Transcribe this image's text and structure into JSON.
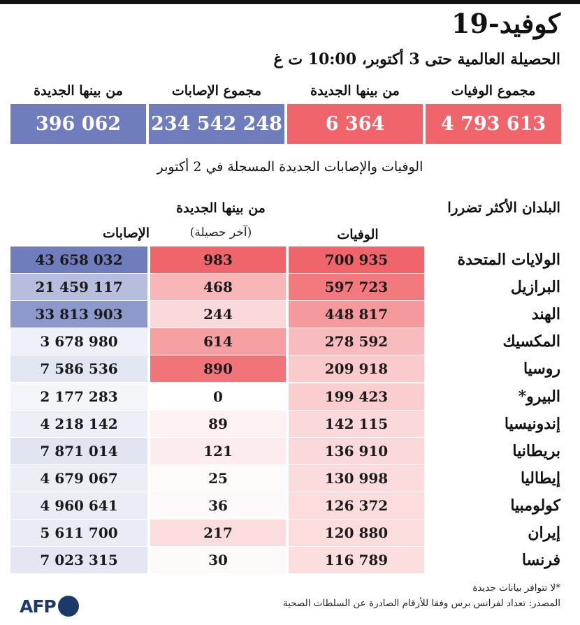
{
  "header": {
    "title": "كوفيد-19",
    "subtitle": "الحصيلة العالمية حتى 3 أكتوبر، 10:00 ت غ"
  },
  "summary": [
    {
      "label": "مجموع الوفيات",
      "value": "4 793 613",
      "color": "#f0656b"
    },
    {
      "label": "من بينها الجديدة",
      "value": "6 364",
      "color": "#f0656b"
    },
    {
      "label": "مجموع الإصابات",
      "value": "234 542 248",
      "color": "#6f7dbc"
    },
    {
      "label": "من بينها الجديدة",
      "value": "396 062",
      "color": "#6f7dbc"
    }
  ],
  "caption": "الوفيات والإصابات الجديدة المسجلة في 2 أكتوبر",
  "table": {
    "heading": "البلدان الأكثر تضررا",
    "col_deaths": "الوفيات",
    "col_new": "من بينها الجديدة",
    "col_new_sub": "(آخر حصيلة)",
    "col_cases": "الإصابات",
    "rows": [
      {
        "country": "الولايات المتحدة",
        "deaths": "700 935",
        "new": "983",
        "cases": "43 658 032"
      },
      {
        "country": "البرازيل",
        "deaths": "597 723",
        "new": "468",
        "cases": "21 459 117"
      },
      {
        "country": "الهند",
        "deaths": "448 817",
        "new": "244",
        "cases": "33 813 903"
      },
      {
        "country": "المكسيك",
        "deaths": "278 592",
        "new": "614",
        "cases": "3 678 980"
      },
      {
        "country": "روسيا",
        "deaths": "209 918",
        "new": "890",
        "cases": "7 586 536"
      },
      {
        "country": "البيرو*",
        "deaths": "199 423",
        "new": "0",
        "cases": "2 177 283"
      },
      {
        "country": "إندونيسيا",
        "deaths": "142 115",
        "new": "89",
        "cases": "4 218 142"
      },
      {
        "country": "بريطانيا",
        "deaths": "136 910",
        "new": "121",
        "cases": "7 871 014"
      },
      {
        "country": "إيطاليا",
        "deaths": "130 998",
        "new": "25",
        "cases": "4 679 067"
      },
      {
        "country": "كولومبيا",
        "deaths": "126 372",
        "new": "36",
        "cases": "4 960 641"
      },
      {
        "country": "إيران",
        "deaths": "120 880",
        "new": "217",
        "cases": "5 611 700"
      },
      {
        "country": "فرنسا",
        "deaths": "116 789",
        "new": "30",
        "cases": "7 023 315"
      }
    ]
  },
  "footnote": "*لا تتوافر بيانات جديدة",
  "source": "المصدر: تعداد لفرانس برس وفقا للأرقام الصادرة عن السلطات الصحية",
  "logo": "AFP",
  "colors": {
    "red": "#f0656b",
    "blue": "#6f7dbc"
  }
}
